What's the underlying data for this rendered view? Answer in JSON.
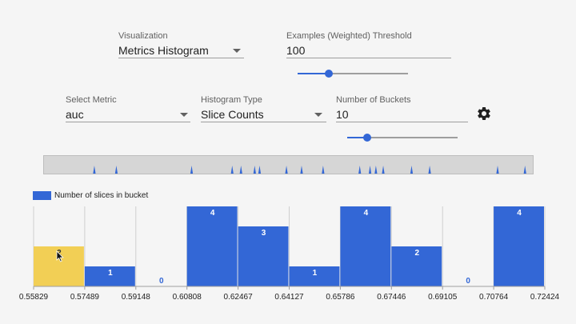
{
  "controls": {
    "visualization": {
      "label": "Visualization",
      "value": "Metrics Histogram"
    },
    "threshold": {
      "label": "Examples (Weighted) Threshold",
      "value": "100",
      "slider_fraction": 0.28
    },
    "metric": {
      "label": "Select Metric",
      "value": "auc"
    },
    "histogram_type": {
      "label": "Histogram Type",
      "value": "Slice Counts"
    },
    "buckets": {
      "label": "Number of Buckets",
      "value": "10",
      "slider_fraction": 0.18
    },
    "settings_icon": "gear-icon"
  },
  "colors": {
    "bar": "#3367d6",
    "highlight": "#f2cf55",
    "zero_label": "#3367d6",
    "grid": "#cfcfcf"
  },
  "chart_data": {
    "type": "bar",
    "legend": "Number of slices in bucket",
    "bin_edges": [
      0.55829,
      0.57489,
      0.59148,
      0.60808,
      0.62467,
      0.64127,
      0.65786,
      0.67446,
      0.69105,
      0.70764,
      0.72424
    ],
    "tick_labels": [
      "0.55829",
      "0.57489",
      "0.59148",
      "0.60808",
      "0.62467",
      "0.64127",
      "0.65786",
      "0.67446",
      "0.69105",
      "0.70764",
      "0.72424"
    ],
    "values": [
      2,
      1,
      0,
      4,
      3,
      1,
      4,
      2,
      0,
      4
    ],
    "value_labels": [
      "2",
      "1",
      "0",
      "4",
      "3",
      "1",
      "4",
      "2",
      "0",
      "4"
    ],
    "highlighted_index": 0,
    "ylim": [
      0,
      4
    ]
  },
  "brush_data": {
    "spikes": [
      0.103,
      0.148,
      0.302,
      0.385,
      0.403,
      0.431,
      0.441,
      0.496,
      0.527,
      0.571,
      0.646,
      0.667,
      0.679,
      0.694,
      0.752,
      0.789,
      0.928,
      0.984
    ]
  }
}
